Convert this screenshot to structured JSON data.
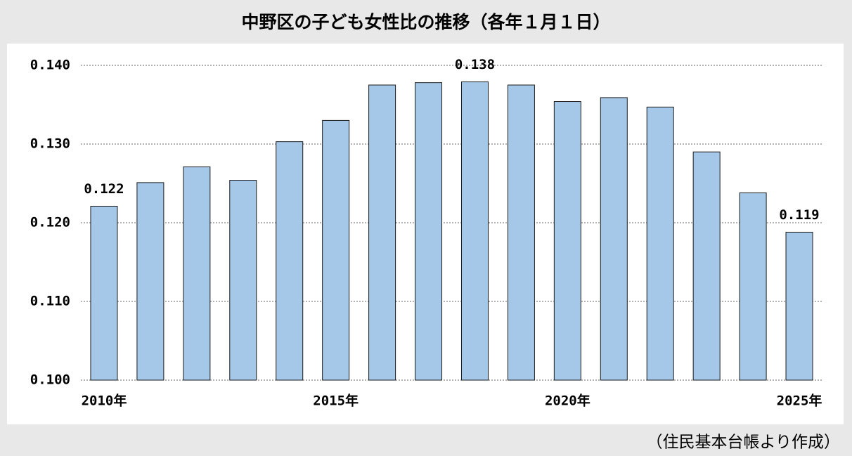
{
  "chart_data": {
    "type": "bar",
    "title": "中野区の子ども女性比の推移（各年１月１日）",
    "source": "（住民基本台帳より作成）",
    "categories": [
      "2010年",
      null,
      null,
      null,
      null,
      "2015年",
      null,
      null,
      null,
      null,
      "2020年",
      null,
      null,
      null,
      null,
      "2025年"
    ],
    "values": [
      0.1221,
      0.1251,
      0.1271,
      0.1254,
      0.1303,
      0.133,
      0.1375,
      0.1378,
      0.1379,
      0.1375,
      0.1354,
      0.1359,
      0.1347,
      0.129,
      0.1238,
      0.1188
    ],
    "value_labels": [
      "0.122",
      null,
      null,
      null,
      null,
      null,
      null,
      null,
      "0.138",
      null,
      null,
      null,
      null,
      null,
      null,
      "0.119"
    ],
    "color": "#a5c8e9",
    "ylim": [
      0.1,
      0.14
    ],
    "yticks": [
      {
        "value": 0.1,
        "label": "0.100"
      },
      {
        "value": 0.11,
        "label": "0.110"
      },
      {
        "value": 0.12,
        "label": "0.120"
      },
      {
        "value": 0.13,
        "label": "0.130"
      },
      {
        "value": 0.14,
        "label": "0.140"
      }
    ],
    "grid": true
  }
}
